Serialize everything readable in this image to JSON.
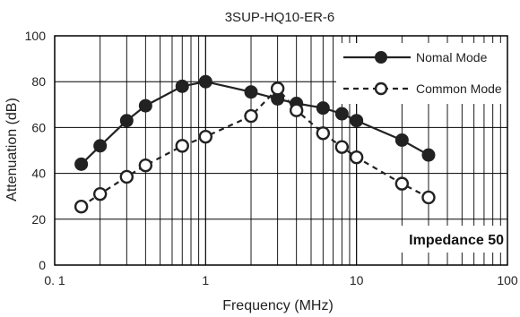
{
  "chart_data": {
    "type": "line",
    "title": "3SUP-HQ10-ER-6",
    "xlabel": "Frequency (MHz)",
    "ylabel": "Attenuation (dB)",
    "xscale": "log",
    "xlim": [
      0.1,
      100
    ],
    "ylim": [
      0,
      100
    ],
    "x_ticks": [
      0.1,
      1,
      10,
      100
    ],
    "x_tick_labels": [
      "0. 1",
      "1",
      "10",
      "100"
    ],
    "y_ticks": [
      0,
      20,
      40,
      60,
      80,
      100
    ],
    "y_tick_labels": [
      "0",
      "20",
      "40",
      "60",
      "80",
      "100"
    ],
    "grid": true,
    "legend_position": "top-right",
    "annotation": "Impedance 50",
    "colors": {
      "line": "#222222",
      "grid": "#000000",
      "background": "#ffffff"
    },
    "series": [
      {
        "name": "Nomal Mode",
        "style": "solid",
        "marker": "filled-circle",
        "x": [
          0.15,
          0.2,
          0.3,
          0.4,
          0.7,
          1,
          2,
          3,
          4,
          6,
          8,
          10,
          20,
          30
        ],
        "y": [
          44,
          52,
          63,
          69.5,
          78,
          80,
          75.5,
          72.5,
          70.5,
          68.5,
          66,
          63,
          54.5,
          48
        ]
      },
      {
        "name": "Common Mode",
        "style": "dashed",
        "marker": "open-circle",
        "x": [
          0.15,
          0.2,
          0.3,
          0.4,
          0.7,
          1,
          2,
          3,
          4,
          6,
          8,
          10,
          20,
          30
        ],
        "y": [
          25.5,
          31,
          38.5,
          43.5,
          52,
          56,
          65,
          77,
          67.5,
          57.5,
          51.5,
          47,
          35.5,
          29.5
        ]
      }
    ]
  }
}
